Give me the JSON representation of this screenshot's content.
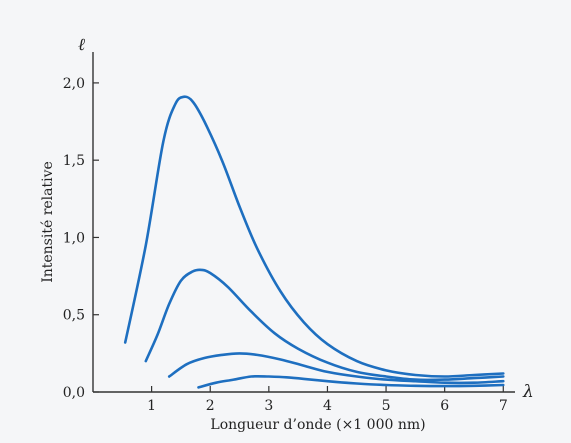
{
  "chart_data": {
    "type": "line",
    "xlabel": "Longueur d’onde (×1 000 nm)",
    "ylabel": "Intensité relative",
    "x_axis_symbol": "λ",
    "y_axis_symbol": "ℓ",
    "xlim": [
      0,
      7.2
    ],
    "ylim": [
      0,
      2.2
    ],
    "x_ticks": [
      1,
      2,
      3,
      4,
      5,
      6,
      7
    ],
    "x_tick_labels": [
      "1",
      "2",
      "3",
      "4",
      "5",
      "6",
      "7"
    ],
    "y_ticks": [
      0,
      0.5,
      1.0,
      1.5,
      2.0
    ],
    "y_tick_labels": [
      "0,0",
      "0,5",
      "1,0",
      "1,5",
      "2,0"
    ],
    "grid": false,
    "legend": "none",
    "line_color": "#1e6fc0",
    "series": [
      {
        "points": [
          [
            0.55,
            0.32
          ],
          [
            0.9,
            0.95
          ],
          [
            1.2,
            1.62
          ],
          [
            1.4,
            1.86
          ],
          [
            1.55,
            1.91
          ],
          [
            1.7,
            1.88
          ],
          [
            1.9,
            1.75
          ],
          [
            2.2,
            1.5
          ],
          [
            2.5,
            1.2
          ],
          [
            2.8,
            0.93
          ],
          [
            3.2,
            0.65
          ],
          [
            3.6,
            0.45
          ],
          [
            4.0,
            0.31
          ],
          [
            4.5,
            0.2
          ],
          [
            5.0,
            0.14
          ],
          [
            5.5,
            0.11
          ],
          [
            6.0,
            0.1
          ],
          [
            6.5,
            0.11
          ],
          [
            7.0,
            0.12
          ]
        ]
      },
      {
        "points": [
          [
            0.9,
            0.2
          ],
          [
            1.1,
            0.37
          ],
          [
            1.3,
            0.57
          ],
          [
            1.5,
            0.72
          ],
          [
            1.7,
            0.78
          ],
          [
            1.85,
            0.79
          ],
          [
            2.0,
            0.77
          ],
          [
            2.3,
            0.68
          ],
          [
            2.7,
            0.52
          ],
          [
            3.1,
            0.38
          ],
          [
            3.5,
            0.28
          ],
          [
            4.0,
            0.19
          ],
          [
            4.5,
            0.13
          ],
          [
            5.0,
            0.1
          ],
          [
            5.5,
            0.08
          ],
          [
            6.0,
            0.08
          ],
          [
            6.5,
            0.09
          ],
          [
            7.0,
            0.1
          ]
        ]
      },
      {
        "points": [
          [
            1.3,
            0.1
          ],
          [
            1.6,
            0.18
          ],
          [
            1.9,
            0.22
          ],
          [
            2.2,
            0.24
          ],
          [
            2.5,
            0.25
          ],
          [
            2.8,
            0.24
          ],
          [
            3.2,
            0.21
          ],
          [
            3.6,
            0.17
          ],
          [
            4.0,
            0.13
          ],
          [
            4.5,
            0.1
          ],
          [
            5.0,
            0.08
          ],
          [
            5.5,
            0.07
          ],
          [
            6.0,
            0.06
          ],
          [
            6.5,
            0.06
          ],
          [
            7.0,
            0.07
          ]
        ]
      },
      {
        "points": [
          [
            1.8,
            0.03
          ],
          [
            2.1,
            0.06
          ],
          [
            2.4,
            0.08
          ],
          [
            2.7,
            0.1
          ],
          [
            3.0,
            0.1
          ],
          [
            3.3,
            0.095
          ],
          [
            3.6,
            0.085
          ],
          [
            4.0,
            0.07
          ],
          [
            4.5,
            0.055
          ],
          [
            5.0,
            0.045
          ],
          [
            5.5,
            0.04
          ],
          [
            6.0,
            0.038
          ],
          [
            6.5,
            0.04
          ],
          [
            7.0,
            0.045
          ]
        ]
      }
    ]
  }
}
